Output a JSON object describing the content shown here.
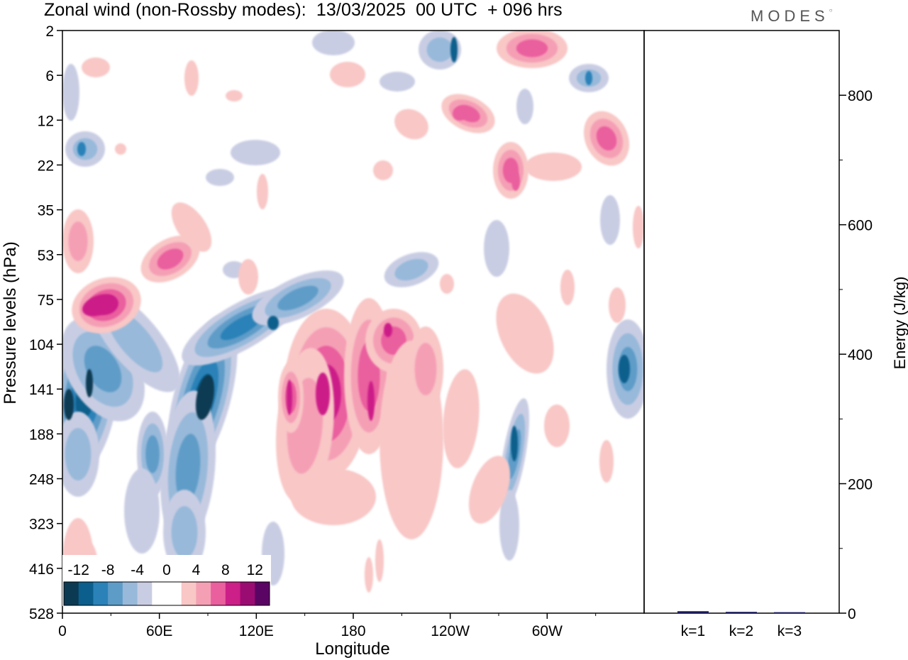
{
  "title": "Zonal wind (non-Rossby modes):  13/03/2025  00 UTC  + 096 hrs",
  "logo": "MODES",
  "chart_data": [
    {
      "type": "heatmap",
      "xlabel": "Longitude",
      "ylabel": "Pressure levels (hPa)",
      "x_ticks": [
        "0",
        "60E",
        "120E",
        "180",
        "120W",
        "60W"
      ],
      "y_ticks": [
        "2",
        "6",
        "12",
        "22",
        "35",
        "53",
        "75",
        "104",
        "141",
        "188",
        "248",
        "323",
        "416",
        "528"
      ],
      "colorbar": {
        "labels": [
          "-12",
          "-8",
          "-4",
          "0",
          "4",
          "8",
          "12"
        ],
        "colors": [
          "#0c3a52",
          "#0c5e8c",
          "#2a82b8",
          "#5e9cc8",
          "#98b9da",
          "#c9cde3",
          "#ffffff",
          "#ffffff",
          "#f8c7c6",
          "#f59fb5",
          "#ea5f9e",
          "#cc1f88",
          "#9b0c72",
          "#5a0564"
        ]
      },
      "features": [
        {
          "sign": "negative",
          "lon": 12,
          "level": 141,
          "peak": -14
        },
        {
          "sign": "negative",
          "lon": 85,
          "level": 141,
          "peak": -14
        },
        {
          "sign": "negative",
          "lon": 125,
          "level": 90,
          "peak": -9
        },
        {
          "sign": "negative",
          "lon": 55,
          "level": 188,
          "peak": -8
        },
        {
          "sign": "negative",
          "lon": 275,
          "level": 200,
          "peak": -8
        },
        {
          "sign": "negative",
          "lon": 355,
          "level": 141,
          "peak": -9
        },
        {
          "sign": "positive",
          "lon": 27,
          "level": 80,
          "peak": 9
        },
        {
          "sign": "positive",
          "lon": 60,
          "level": 55,
          "peak": 7
        },
        {
          "sign": "positive",
          "lon": 160,
          "level": 141,
          "peak": 11
        },
        {
          "sign": "positive",
          "lon": 190,
          "level": 100,
          "peak": 8
        },
        {
          "sign": "positive",
          "lon": 137,
          "level": 141,
          "peak": 7
        },
        {
          "sign": "positive",
          "lon": 280,
          "level": 4,
          "peak": 7
        },
        {
          "sign": "positive",
          "lon": 245,
          "level": 12,
          "peak": 6
        },
        {
          "sign": "positive",
          "lon": 328,
          "level": 14,
          "peak": 6
        }
      ]
    },
    {
      "type": "bar",
      "ylabel": "Energy (J/kg)",
      "categories": [
        "k=1",
        "k=2",
        "k=3"
      ],
      "values": [
        3,
        2,
        1.5
      ],
      "ylim": [
        0,
        900
      ],
      "y_ticks": [
        "0",
        "200",
        "400",
        "600",
        "800"
      ],
      "bar_color": "#1a1a5a"
    }
  ]
}
